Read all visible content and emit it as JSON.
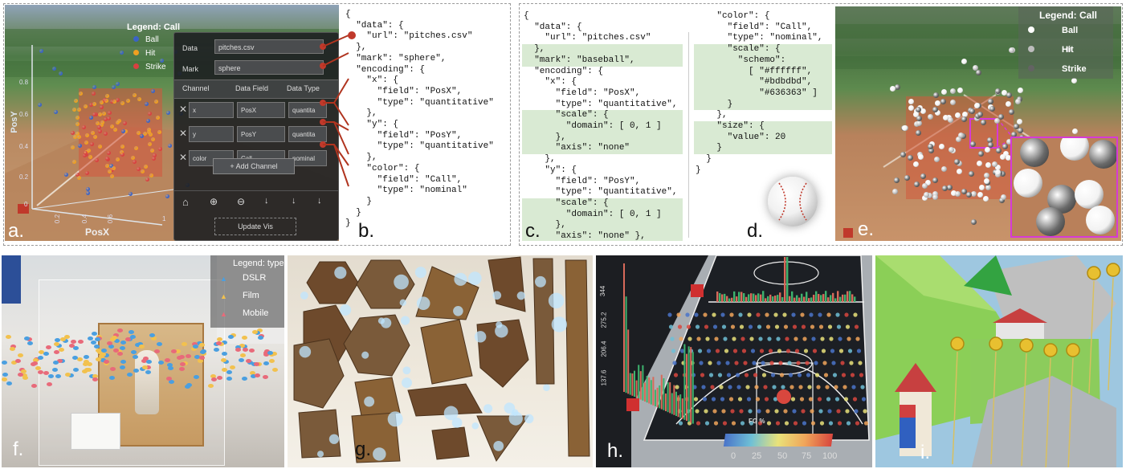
{
  "panel_a": {
    "label": "a.",
    "legend_title": "Legend: Call",
    "legend_items": [
      {
        "label": "Ball",
        "color": "#3a63c6"
      },
      {
        "label": "Hit",
        "color": "#f0a020"
      },
      {
        "label": "Strike",
        "color": "#d84040"
      }
    ],
    "axis_x_label": "PosX",
    "axis_y_label": "PosY",
    "x_ticks": [
      "0.2",
      "0.4",
      "0.6",
      "1"
    ],
    "y_ticks": [
      "0.8",
      "0.6",
      "0.4",
      "0.2",
      "0"
    ],
    "ui": {
      "data_label": "Data",
      "data_value": "pitches.csv",
      "mark_label": "Mark",
      "mark_value": "sphere",
      "col_channel": "Channel",
      "col_field": "Data Field",
      "col_type": "Data Type",
      "rows": [
        {
          "channel": "x",
          "field": "PosX",
          "type": "quantita"
        },
        {
          "channel": "y",
          "field": "PosY",
          "type": "quantita"
        },
        {
          "channel": "color",
          "field": "Call",
          "type": "nominal"
        }
      ],
      "add_channel": "+ Add Channel",
      "update_vis": "Update Vis"
    }
  },
  "panel_b": {
    "label": "b.",
    "lines": [
      "{",
      "  \"data\": {",
      "    \"url\": \"pitches.csv\"",
      "  },",
      "  \"mark\": \"sphere\",",
      "  \"encoding\": {",
      "    \"x\": {",
      "      \"field\": \"PosX\",",
      "      \"type\": \"quantitative\"",
      "    },",
      "    \"y\": {",
      "      \"field\": \"PosY\",",
      "      \"type\": \"quantitative\"",
      "    },",
      "    \"color\": {",
      "      \"field\": \"Call\",",
      "      \"type\": \"nominal\"",
      "    }",
      "  }",
      "}"
    ]
  },
  "panel_c": {
    "label": "c.",
    "lines": [
      "{",
      "  \"data\": {",
      "    \"url\": \"pitches.csv\"",
      "  },",
      "  \"mark\": \"baseball\",",
      "  \"encoding\": {",
      "    \"x\": {",
      "      \"field\": \"PosX\",",
      "      \"type\": \"quantitative\",",
      "      \"scale\": {",
      "        \"domain\": [ 0, 1 ]",
      "      },",
      "      \"axis\": \"none\"",
      "    },",
      "    \"y\": {",
      "      \"field\": \"PosY\",",
      "      \"type\": \"quantitative\",",
      "      \"scale\": {",
      "        \"domain\": [ 0, 1 ]",
      "      },",
      "      \"axis\": \"none\" },"
    ],
    "highlight": [
      3,
      4,
      9,
      10,
      11,
      12,
      17,
      18,
      19,
      20
    ]
  },
  "panel_d": {
    "label": "d.",
    "lines": [
      "    \"color\": {",
      "      \"field\": \"Call\",",
      "      \"type\": \"nominal\",",
      "      \"scale\": {",
      "        \"schemo\":",
      "          [ \"#ffffff\",",
      "            \"#bdbdbd\",",
      "            \"#636363\" ]",
      "      }",
      "    },",
      "    \"size\": {",
      "      \"value\": 20",
      "    }",
      "  }",
      "}"
    ],
    "highlight": [
      3,
      4,
      5,
      6,
      7,
      8,
      10,
      11,
      12
    ]
  },
  "panel_e": {
    "label": "e.",
    "legend_title": "Legend: Call",
    "legend_items": [
      {
        "label": "Ball",
        "color": "#ffffff"
      },
      {
        "label": "Hit",
        "color": "#bdbdbd"
      },
      {
        "label": "Strike",
        "color": "#636363"
      }
    ]
  },
  "panel_f": {
    "label": "f.",
    "legend_title": "Legend: type",
    "legend_items": [
      {
        "label": "DSLR",
        "color": "#4a9fe0"
      },
      {
        "label": "Film",
        "color": "#f2c14e"
      },
      {
        "label": "Mobile",
        "color": "#e86a7a"
      }
    ]
  },
  "panel_g": {
    "label": "g."
  },
  "panel_h": {
    "label": "h.",
    "y_ticks": [
      "344",
      "275.2",
      "206.4",
      "137.6"
    ],
    "colorbar_title": "FG %",
    "colorbar_ticks": [
      "0",
      "25",
      "50",
      "75",
      "100"
    ]
  },
  "panel_i": {
    "label": "i."
  }
}
